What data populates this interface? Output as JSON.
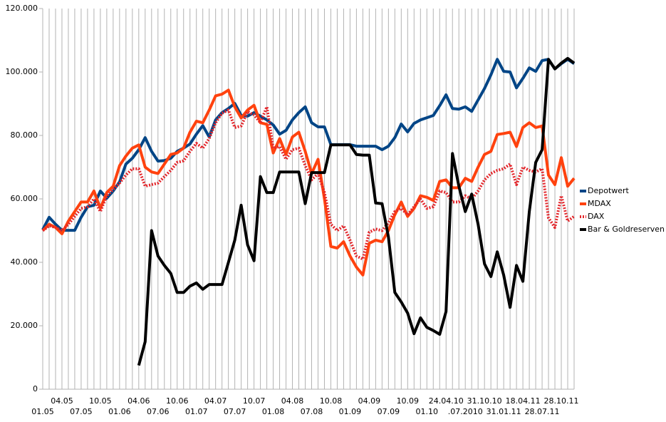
{
  "chart_data": {
    "type": "line",
    "categories": [
      "01.05",
      null,
      null,
      "04.05",
      null,
      null,
      "07.05",
      null,
      null,
      "10.05",
      null,
      null,
      "01.06",
      null,
      null,
      "04.06",
      null,
      null,
      "07.06",
      null,
      null,
      "10.06",
      null,
      null,
      "01.07",
      null,
      null,
      "04.07",
      null,
      null,
      "07.07",
      null,
      null,
      "10.07",
      null,
      null,
      "01.08",
      null,
      null,
      "04.08",
      null,
      null,
      "07.08",
      null,
      null,
      "10.08",
      null,
      null,
      "01.09",
      null,
      null,
      "04.09",
      null,
      null,
      "07.09",
      null,
      null,
      "10.09",
      null,
      null,
      "01.10",
      null,
      null,
      "24.04.10",
      null,
      null,
      ".07.2010",
      null,
      null,
      "31.10.10",
      null,
      null,
      "31.01.11",
      null,
      null,
      "18.04.11",
      null,
      null,
      "28.07.11",
      null,
      null,
      "28.10.11",
      null,
      null
    ],
    "series": [
      {
        "name": "Depotwert",
        "color": "#004586",
        "style": "solid",
        "values": [
          50300,
          54200,
          52000,
          50100,
          50100,
          50100,
          54200,
          57500,
          58000,
          62500,
          60200,
          62500,
          65400,
          71000,
          72800,
          75500,
          79300,
          75000,
          71900,
          72100,
          72800,
          75000,
          76000,
          77300,
          80400,
          83100,
          79500,
          84900,
          87200,
          88500,
          90100,
          86300,
          86100,
          87200,
          86100,
          84900,
          83300,
          80400,
          81600,
          84900,
          87200,
          89000,
          84000,
          82700,
          82700,
          77100,
          77100,
          77100,
          77100,
          76600,
          76600,
          76600,
          76600,
          75500,
          76600,
          79300,
          83600,
          81100,
          83800,
          84900,
          85600,
          86300,
          89400,
          92800,
          88500,
          88300,
          89000,
          87600,
          91200,
          94800,
          99100,
          104000,
          100200,
          100000,
          95000,
          98000,
          101300,
          100200,
          103600,
          104000,
          101000,
          102600,
          104000,
          102600
        ]
      },
      {
        "name": "MDAX",
        "color": "#ff420e",
        "style": "solid",
        "values": [
          50000,
          52000,
          51000,
          49000,
          53000,
          56000,
          59000,
          59000,
          62500,
          57000,
          62000,
          64000,
          70500,
          73500,
          76000,
          77000,
          70000,
          68500,
          68000,
          71000,
          74000,
          74500,
          76000,
          81000,
          84500,
          84000,
          88000,
          92500,
          93000,
          94300,
          89000,
          85500,
          88000,
          89500,
          84000,
          83500,
          74500,
          79000,
          74000,
          79500,
          81000,
          75000,
          68000,
          72500,
          60000,
          45000,
          44500,
          46500,
          42000,
          38500,
          36000,
          46000,
          47000,
          46500,
          50000,
          55000,
          59000,
          54500,
          57000,
          61000,
          60500,
          59500,
          65500,
          66000,
          63500,
          63500,
          66500,
          65500,
          70000,
          74000,
          75000,
          80300,
          80600,
          81000,
          76500,
          82500,
          84000,
          82500,
          83000,
          67500,
          64500,
          73000,
          64000,
          66500
        ]
      },
      {
        "name": "DAX",
        "color": "#e3262b",
        "style": "dotted",
        "values": [
          50000,
          51500,
          51000,
          50000,
          52000,
          54500,
          57000,
          57500,
          60000,
          56000,
          61000,
          63000,
          65000,
          67500,
          69500,
          69500,
          64000,
          64500,
          65000,
          67000,
          69000,
          71500,
          72000,
          75000,
          77500,
          76000,
          79000,
          84000,
          87000,
          88000,
          82500,
          83000,
          87500,
          86500,
          84000,
          89000,
          76000,
          76500,
          72500,
          75500,
          76000,
          70500,
          66000,
          68000,
          62000,
          52000,
          50000,
          51500,
          47000,
          42000,
          41000,
          49500,
          50500,
          50000,
          52500,
          56000,
          57000,
          55000,
          57500,
          60000,
          57000,
          57500,
          62500,
          62000,
          59000,
          59000,
          61000,
          60000,
          62500,
          66000,
          68000,
          69000,
          69500,
          71000,
          64500,
          70000,
          69000,
          68500,
          69500,
          54000,
          51000,
          61000,
          53000,
          54500
        ]
      },
      {
        "name": "Bar & Goldreserven",
        "color": "#000000",
        "style": "solid",
        "values": [
          null,
          null,
          null,
          null,
          null,
          null,
          null,
          null,
          null,
          null,
          null,
          null,
          null,
          null,
          null,
          7500,
          15000,
          50000,
          42000,
          39000,
          36500,
          30500,
          30500,
          32500,
          33500,
          31500,
          33000,
          33000,
          33000,
          40000,
          47000,
          58000,
          45500,
          40500,
          67000,
          62000,
          62000,
          68500,
          68500,
          68500,
          68500,
          58500,
          68300,
          68300,
          68300,
          77000,
          77000,
          77000,
          77000,
          74000,
          73800,
          73800,
          58700,
          58500,
          48000,
          30500,
          27500,
          24000,
          17500,
          22500,
          19500,
          18500,
          17300,
          24500,
          74300,
          64000,
          56000,
          61500,
          52000,
          39500,
          35500,
          43300,
          36000,
          25800,
          39000,
          34000,
          56000,
          71500,
          75500,
          104000,
          101000,
          102800,
          104300,
          102800
        ]
      }
    ],
    "ylim": [
      0,
      120000
    ],
    "yticks": [
      0,
      {
        "value": 20000,
        "label": "20.000"
      },
      {
        "value": 40000,
        "label": "40.000"
      },
      {
        "value": 60000,
        "label": "60.000"
      },
      {
        "value": 80000,
        "label": "80.000"
      },
      {
        "value": 100000,
        "label": "100.000"
      },
      {
        "value": 120000,
        "label": "120.000"
      }
    ],
    "grid": "x",
    "legend": "right"
  }
}
